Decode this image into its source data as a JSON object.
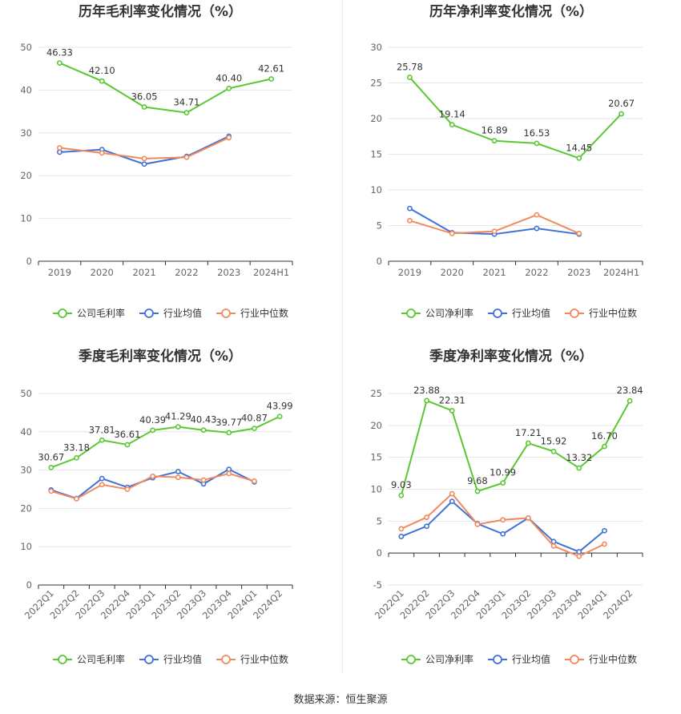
{
  "source": "数据来源：恒生聚源",
  "colors": {
    "company": "#5ac833",
    "industry_avg": "#3f72d8",
    "industry_median": "#f2895c",
    "grid": "#e6e6e6",
    "axis": "#333333"
  },
  "chart_data": [
    {
      "type": "line",
      "title": "历年毛利率变化情况（%）",
      "categories": [
        "2019",
        "2020",
        "2021",
        "2022",
        "2023",
        "2024H1"
      ],
      "ylim": [
        0,
        50
      ],
      "yticks": [
        0,
        10,
        20,
        30,
        40,
        50
      ],
      "ytick_labels": [
        "0",
        "10",
        "20",
        "30",
        "40",
        "50"
      ],
      "rotate_x": false,
      "grid": true,
      "legend_position": "bottom",
      "series": [
        {
          "name": "公司毛利率",
          "color_key": "company",
          "labeled": true,
          "values": [
            46.33,
            42.1,
            36.05,
            34.71,
            40.4,
            42.61
          ],
          "labels": [
            "46.33",
            "42.10",
            "36.05",
            "34.71",
            "40.40",
            "42.61"
          ]
        },
        {
          "name": "行业均值",
          "color_key": "industry_avg",
          "labeled": false,
          "values": [
            25.5,
            26.1,
            22.7,
            24.5,
            29.2,
            null
          ]
        },
        {
          "name": "行业中位数",
          "color_key": "industry_median",
          "labeled": false,
          "values": [
            26.5,
            25.3,
            24.0,
            24.3,
            28.9,
            null
          ]
        }
      ]
    },
    {
      "type": "line",
      "title": "历年净利率变化情况（%）",
      "categories": [
        "2019",
        "2020",
        "2021",
        "2022",
        "2023",
        "2024H1"
      ],
      "ylim": [
        0,
        30
      ],
      "yticks": [
        0,
        5,
        10,
        15,
        20,
        25,
        30
      ],
      "ytick_labels": [
        "0",
        "5",
        "10",
        "15",
        "20",
        "25",
        "30"
      ],
      "rotate_x": false,
      "grid": true,
      "legend_position": "bottom",
      "series": [
        {
          "name": "公司净利率",
          "color_key": "company",
          "labeled": true,
          "values": [
            25.78,
            19.14,
            16.89,
            16.53,
            14.45,
            20.67
          ],
          "labels": [
            "25.78",
            "19.14",
            "16.89",
            "16.53",
            "14.45",
            "20.67"
          ]
        },
        {
          "name": "行业均值",
          "color_key": "industry_avg",
          "labeled": false,
          "values": [
            7.4,
            4.0,
            3.8,
            4.6,
            3.8,
            null
          ]
        },
        {
          "name": "行业中位数",
          "color_key": "industry_median",
          "labeled": false,
          "values": [
            5.7,
            3.9,
            4.2,
            6.5,
            3.9,
            null
          ]
        }
      ]
    },
    {
      "type": "line",
      "title": "季度毛利率变化情况（%）",
      "categories": [
        "2022Q1",
        "2022Q2",
        "2022Q3",
        "2022Q4",
        "2023Q1",
        "2023Q2",
        "2023Q3",
        "2023Q4",
        "2024Q1",
        "2024Q2"
      ],
      "ylim": [
        0,
        50
      ],
      "yticks": [
        0,
        10,
        20,
        30,
        40,
        50
      ],
      "ytick_labels": [
        "0",
        "10",
        "20",
        "30",
        "40",
        "50"
      ],
      "rotate_x": true,
      "grid": true,
      "legend_position": "bottom",
      "series": [
        {
          "name": "公司毛利率",
          "color_key": "company",
          "labeled": true,
          "values": [
            30.67,
            33.18,
            37.81,
            36.61,
            40.39,
            41.29,
            40.43,
            39.77,
            40.87,
            43.99
          ],
          "labels": [
            "30.67",
            "33.18",
            "37.81",
            "36.61",
            "40.39",
            "41.29",
            "40.43",
            "39.77",
            "40.87",
            "43.99"
          ]
        },
        {
          "name": "行业均值",
          "color_key": "industry_avg",
          "labeled": false,
          "values": [
            24.8,
            22.6,
            27.8,
            25.5,
            28.0,
            29.6,
            26.4,
            30.2,
            26.9,
            null
          ]
        },
        {
          "name": "行业中位数",
          "color_key": "industry_median",
          "labeled": false,
          "values": [
            24.5,
            22.5,
            26.2,
            25.0,
            28.4,
            28.1,
            27.4,
            29.1,
            27.1,
            null
          ]
        }
      ]
    },
    {
      "type": "line",
      "title": "季度净利率变化情况（%）",
      "categories": [
        "2022Q1",
        "2022Q2",
        "2022Q3",
        "2022Q4",
        "2023Q1",
        "2023Q2",
        "2023Q3",
        "2023Q4",
        "2024Q1",
        "2024Q2"
      ],
      "ylim": [
        -5,
        25
      ],
      "yticks": [
        -5,
        0,
        5,
        10,
        15,
        20,
        25
      ],
      "ytick_labels": [
        "-5",
        "0",
        "5",
        "10",
        "15",
        "20",
        "25"
      ],
      "rotate_x": true,
      "grid": true,
      "legend_position": "bottom",
      "series": [
        {
          "name": "公司净利率",
          "color_key": "company",
          "labeled": true,
          "values": [
            9.03,
            23.88,
            22.31,
            9.68,
            10.99,
            17.21,
            15.92,
            13.32,
            16.7,
            23.84
          ],
          "labels": [
            "9.03",
            "23.88",
            "22.31",
            "9.68",
            "10.99",
            "17.21",
            "15.92",
            "13.32",
            "16.70",
            "23.84"
          ]
        },
        {
          "name": "行业均值",
          "color_key": "industry_avg",
          "labeled": false,
          "values": [
            2.6,
            4.2,
            8.1,
            4.6,
            3.0,
            5.5,
            1.8,
            0.2,
            3.5,
            null
          ]
        },
        {
          "name": "行业中位数",
          "color_key": "industry_median",
          "labeled": false,
          "values": [
            3.8,
            5.6,
            9.3,
            4.5,
            5.2,
            5.5,
            1.1,
            -0.5,
            1.4,
            null
          ]
        }
      ]
    }
  ]
}
